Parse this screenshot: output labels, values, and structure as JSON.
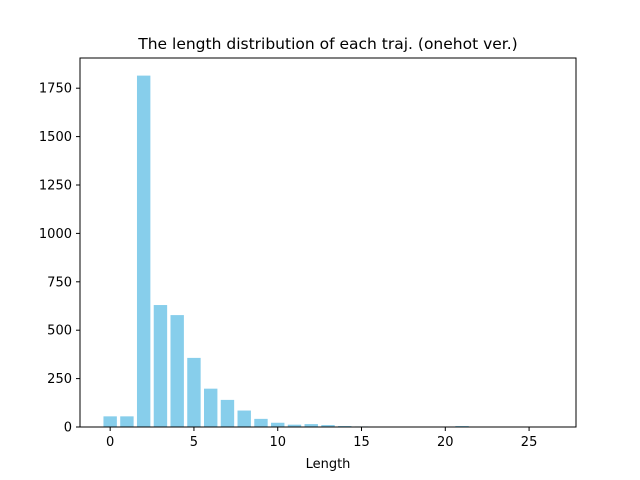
{
  "chart_data": {
    "type": "bar",
    "title": "The length distribution of each traj. (onehot ver.)",
    "xlabel": "Length",
    "ylabel": "",
    "x": [
      0,
      1,
      2,
      3,
      4,
      5,
      6,
      7,
      8,
      9,
      10,
      11,
      12,
      13,
      14,
      15,
      16,
      17,
      18,
      19,
      20,
      21,
      22,
      23,
      24,
      25,
      26
    ],
    "values": [
      55,
      55,
      1815,
      630,
      578,
      357,
      198,
      140,
      85,
      42,
      22,
      12,
      15,
      10,
      5,
      3,
      2,
      2,
      1,
      1,
      1,
      5,
      1,
      1,
      1,
      1,
      1
    ],
    "xlim": [
      -1.8,
      27.8
    ],
    "ylim": [
      0,
      1906
    ],
    "xticks": [
      0,
      5,
      10,
      15,
      20,
      25
    ],
    "yticks": [
      0,
      250,
      500,
      750,
      1000,
      1250,
      1500,
      1750
    ],
    "bar_color": "#87ceeb",
    "grid": false,
    "legend": "none"
  }
}
